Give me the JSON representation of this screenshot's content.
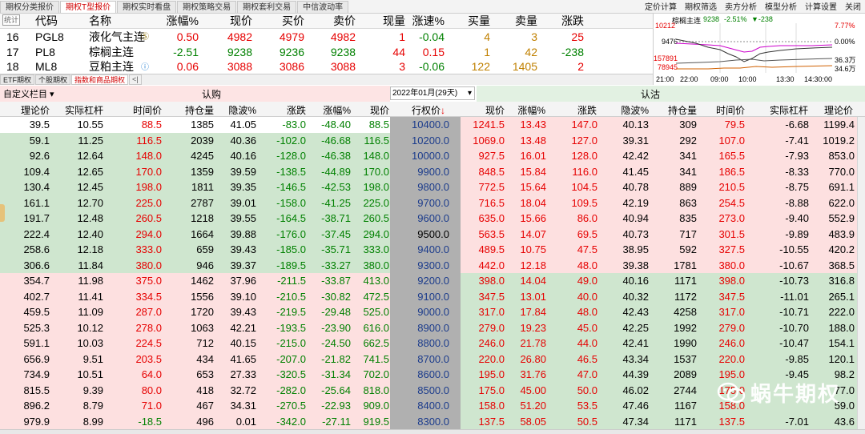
{
  "top_tabs": [
    "期权分类报价",
    "期权T型报价",
    "期权实时看盘",
    "期权策略交易",
    "期权套利交易",
    "中信波动率"
  ],
  "top_right": [
    "定价计算",
    "期权筛选",
    "卖方分析",
    "模型分析",
    "计算设置",
    "关闭"
  ],
  "quote": {
    "stat_btn": "统计",
    "headers": [
      "代码",
      "名称",
      "涨幅%",
      "现价",
      "买价",
      "卖价",
      "现量",
      "涨速%",
      "买量",
      "卖量",
      "涨跌"
    ],
    "rows": [
      {
        "idx": "16",
        "code": "PGL8",
        "name": "液化气主连",
        "chg_pct": "0.50",
        "price": "4982",
        "bid": "4979",
        "ask": "4982",
        "vol": "1",
        "speed": "-0.04",
        "bidq": "4",
        "askq": "3",
        "chg": "25"
      },
      {
        "idx": "17",
        "code": "PL8",
        "name": "棕榈主连",
        "chg_pct": "-2.51",
        "price": "9238",
        "bid": "9236",
        "ask": "9238",
        "vol": "44",
        "speed": "0.15",
        "bidq": "1",
        "askq": "42",
        "chg": "-238"
      },
      {
        "idx": "18",
        "code": "ML8",
        "name": "豆粕主连",
        "chg_pct": "0.06",
        "price": "3088",
        "bid": "3086",
        "ask": "3088",
        "vol": "3",
        "speed": "-0.06",
        "bidq": "122",
        "askq": "1405",
        "chg": "2"
      }
    ]
  },
  "sub_tabs": [
    "ETF期权",
    "个股期权",
    "指数和商品期权"
  ],
  "mini_chart": {
    "title": "棕榈主连",
    "price": "9238",
    "pct": "-2.51%",
    "delta": "-238",
    "left_labels": [
      "10212",
      "9476",
      "157891",
      "78945"
    ],
    "right_labels": [
      "7.77%",
      "0.00%",
      "36.3万",
      "34.6万"
    ],
    "times": [
      "21:00",
      "22:00",
      "09:00",
      "10:00",
      "13:30",
      "14:30:00"
    ]
  },
  "t_header": {
    "custom": "自定义栏目",
    "call": "认购",
    "month": "2022年01月(29天)",
    "put": "认沽",
    "call_cols": [
      "理论价",
      "实际杠杆",
      "时间价",
      "持仓量",
      "隐波%",
      "涨跌",
      "涨幅%",
      "现价"
    ],
    "strike_col": "行权价",
    "put_cols": [
      "现价",
      "涨幅%",
      "涨跌",
      "隐波%",
      "持仓量",
      "时间价",
      "实际杠杆",
      "理论价"
    ]
  },
  "rows": [
    {
      "c": [
        "39.5",
        "10.55",
        "88.5",
        "1385",
        "41.05",
        "-83.0",
        "-48.40",
        "88.5"
      ],
      "k": "10400.0",
      "p": [
        "1241.5",
        "13.43",
        "147.0",
        "40.13",
        "309",
        "79.5",
        "-6.68",
        "1199.4"
      ],
      "cbg": "#fff",
      "pbg": "#fde0e0"
    },
    {
      "c": [
        "59.1",
        "11.25",
        "116.5",
        "2039",
        "40.36",
        "-102.0",
        "-46.68",
        "116.5"
      ],
      "k": "10200.0",
      "p": [
        "1069.0",
        "13.48",
        "127.0",
        "39.31",
        "292",
        "107.0",
        "-7.41",
        "1019.2"
      ],
      "cbg": "#cfe6cf",
      "pbg": "#fde0e0"
    },
    {
      "c": [
        "92.6",
        "12.64",
        "148.0",
        "4245",
        "40.16",
        "-128.0",
        "-46.38",
        "148.0"
      ],
      "k": "10000.0",
      "p": [
        "927.5",
        "16.01",
        "128.0",
        "42.42",
        "341",
        "165.5",
        "-7.93",
        "853.0"
      ],
      "cbg": "#cfe6cf",
      "pbg": "#fde0e0"
    },
    {
      "c": [
        "109.4",
        "12.65",
        "170.0",
        "1359",
        "39.59",
        "-138.5",
        "-44.89",
        "170.0"
      ],
      "k": "9900.0",
      "p": [
        "848.5",
        "15.84",
        "116.0",
        "41.45",
        "341",
        "186.5",
        "-8.33",
        "770.0"
      ],
      "cbg": "#cfe6cf",
      "pbg": "#fde0e0"
    },
    {
      "c": [
        "130.4",
        "12.45",
        "198.0",
        "1811",
        "39.35",
        "-146.5",
        "-42.53",
        "198.0"
      ],
      "k": "9800.0",
      "p": [
        "772.5",
        "15.64",
        "104.5",
        "40.78",
        "889",
        "210.5",
        "-8.75",
        "691.1"
      ],
      "cbg": "#cfe6cf",
      "pbg": "#fde0e0"
    },
    {
      "c": [
        "161.1",
        "12.70",
        "225.0",
        "2787",
        "39.01",
        "-158.0",
        "-41.25",
        "225.0"
      ],
      "k": "9700.0",
      "p": [
        "716.5",
        "18.04",
        "109.5",
        "42.19",
        "863",
        "254.5",
        "-8.88",
        "622.0"
      ],
      "cbg": "#cfe6cf",
      "pbg": "#fde0e0"
    },
    {
      "c": [
        "191.7",
        "12.48",
        "260.5",
        "1218",
        "39.55",
        "-164.5",
        "-38.71",
        "260.5"
      ],
      "k": "9600.0",
      "p": [
        "635.0",
        "15.66",
        "86.0",
        "40.94",
        "835",
        "273.0",
        "-9.40",
        "552.9"
      ],
      "cbg": "#cfe6cf",
      "pbg": "#fde0e0"
    },
    {
      "c": [
        "222.4",
        "12.40",
        "294.0",
        "1664",
        "39.88",
        "-176.0",
        "-37.45",
        "294.0"
      ],
      "k": "9500.0",
      "p": [
        "563.5",
        "14.07",
        "69.5",
        "40.73",
        "717",
        "301.5",
        "-9.89",
        "483.9"
      ],
      "cbg": "#cfe6cf",
      "pbg": "#fde0e0"
    },
    {
      "c": [
        "258.6",
        "12.18",
        "333.0",
        "659",
        "39.43",
        "-185.0",
        "-35.71",
        "333.0"
      ],
      "k": "9400.0",
      "p": [
        "489.5",
        "10.75",
        "47.5",
        "38.95",
        "592",
        "327.5",
        "-10.55",
        "420.2"
      ],
      "cbg": "#cfe6cf",
      "pbg": "#fde0e0"
    },
    {
      "c": [
        "306.6",
        "11.84",
        "380.0",
        "946",
        "39.37",
        "-189.5",
        "-33.27",
        "380.0"
      ],
      "k": "9300.0",
      "p": [
        "442.0",
        "12.18",
        "48.0",
        "39.38",
        "1781",
        "380.0",
        "-10.67",
        "368.5"
      ],
      "cbg": "#cfe6cf",
      "pbg": "#fde0e0"
    },
    {
      "c": [
        "354.7",
        "11.98",
        "375.0",
        "1462",
        "37.96",
        "-211.5",
        "-33.87",
        "413.0"
      ],
      "k": "9200.0",
      "p": [
        "398.0",
        "14.04",
        "49.0",
        "40.16",
        "1171",
        "398.0",
        "-10.73",
        "316.8"
      ],
      "cbg": "#fde0e0",
      "pbg": "#cfe6cf"
    },
    {
      "c": [
        "402.7",
        "11.41",
        "334.5",
        "1556",
        "39.10",
        "-210.5",
        "-30.82",
        "472.5"
      ],
      "k": "9100.0",
      "p": [
        "347.5",
        "13.01",
        "40.0",
        "40.32",
        "1172",
        "347.5",
        "-11.01",
        "265.1"
      ],
      "cbg": "#fde0e0",
      "pbg": "#cfe6cf"
    },
    {
      "c": [
        "459.5",
        "11.09",
        "287.0",
        "1720",
        "39.43",
        "-219.5",
        "-29.48",
        "525.0"
      ],
      "k": "9000.0",
      "p": [
        "317.0",
        "17.84",
        "48.0",
        "42.43",
        "4258",
        "317.0",
        "-10.71",
        "222.0"
      ],
      "cbg": "#fde0e0",
      "pbg": "#cfe6cf"
    },
    {
      "c": [
        "525.3",
        "10.12",
        "278.0",
        "1063",
        "42.21",
        "-193.5",
        "-23.90",
        "616.0"
      ],
      "k": "8900.0",
      "p": [
        "279.0",
        "19.23",
        "45.0",
        "42.25",
        "1992",
        "279.0",
        "-10.70",
        "188.0"
      ],
      "cbg": "#fde0e0",
      "pbg": "#cfe6cf"
    },
    {
      "c": [
        "591.1",
        "10.03",
        "224.5",
        "712",
        "40.15",
        "-215.0",
        "-24.50",
        "662.5"
      ],
      "k": "8800.0",
      "p": [
        "246.0",
        "21.78",
        "44.0",
        "42.41",
        "1990",
        "246.0",
        "-10.47",
        "154.1"
      ],
      "cbg": "#fde0e0",
      "pbg": "#cfe6cf"
    },
    {
      "c": [
        "656.9",
        "9.51",
        "203.5",
        "434",
        "41.65",
        "-207.0",
        "-21.82",
        "741.5"
      ],
      "k": "8700.0",
      "p": [
        "220.0",
        "26.80",
        "46.5",
        "43.34",
        "1537",
        "220.0",
        "-9.85",
        "120.1"
      ],
      "cbg": "#fde0e0",
      "pbg": "#cfe6cf"
    },
    {
      "c": [
        "734.9",
        "10.51",
        "64.0",
        "653",
        "27.33",
        "-320.5",
        "-31.34",
        "702.0"
      ],
      "k": "8600.0",
      "p": [
        "195.0",
        "31.76",
        "47.0",
        "44.39",
        "2089",
        "195.0",
        "-9.45",
        "98.2"
      ],
      "cbg": "#fde0e0",
      "pbg": "#cfe6cf"
    },
    {
      "c": [
        "815.5",
        "9.39",
        "80.0",
        "418",
        "32.72",
        "-282.0",
        "-25.64",
        "818.0"
      ],
      "k": "8500.0",
      "p": [
        "175.0",
        "45.00",
        "50.0",
        "46.02",
        "2744",
        "175.0",
        "",
        "77.0"
      ],
      "cbg": "#fde0e0",
      "pbg": "#cfe6cf"
    },
    {
      "c": [
        "896.2",
        "8.79",
        "71.0",
        "467",
        "34.31",
        "-270.5",
        "-22.93",
        "909.0"
      ],
      "k": "8400.0",
      "p": [
        "158.0",
        "51.20",
        "53.5",
        "47.46",
        "1167",
        "158.0",
        "",
        "59.0"
      ],
      "cbg": "#fde0e0",
      "pbg": "#cfe6cf"
    },
    {
      "c": [
        "979.9",
        "8.99",
        "-18.5",
        "496",
        "0.01",
        "-342.0",
        "-27.11",
        "919.5"
      ],
      "k": "8300.0",
      "p": [
        "137.5",
        "58.05",
        "50.5",
        "47.34",
        "1171",
        "137.5",
        "-7.01",
        "43.6"
      ],
      "cbg": "#fde0e0",
      "pbg": "#cfe6cf"
    }
  ],
  "watermark": "蜗牛期权",
  "colors": {
    "up": "#e60000",
    "down": "#008000",
    "strike": "#1c3c8c",
    "call_header": "#fde4e4",
    "put_header": "#e2f1e2"
  }
}
